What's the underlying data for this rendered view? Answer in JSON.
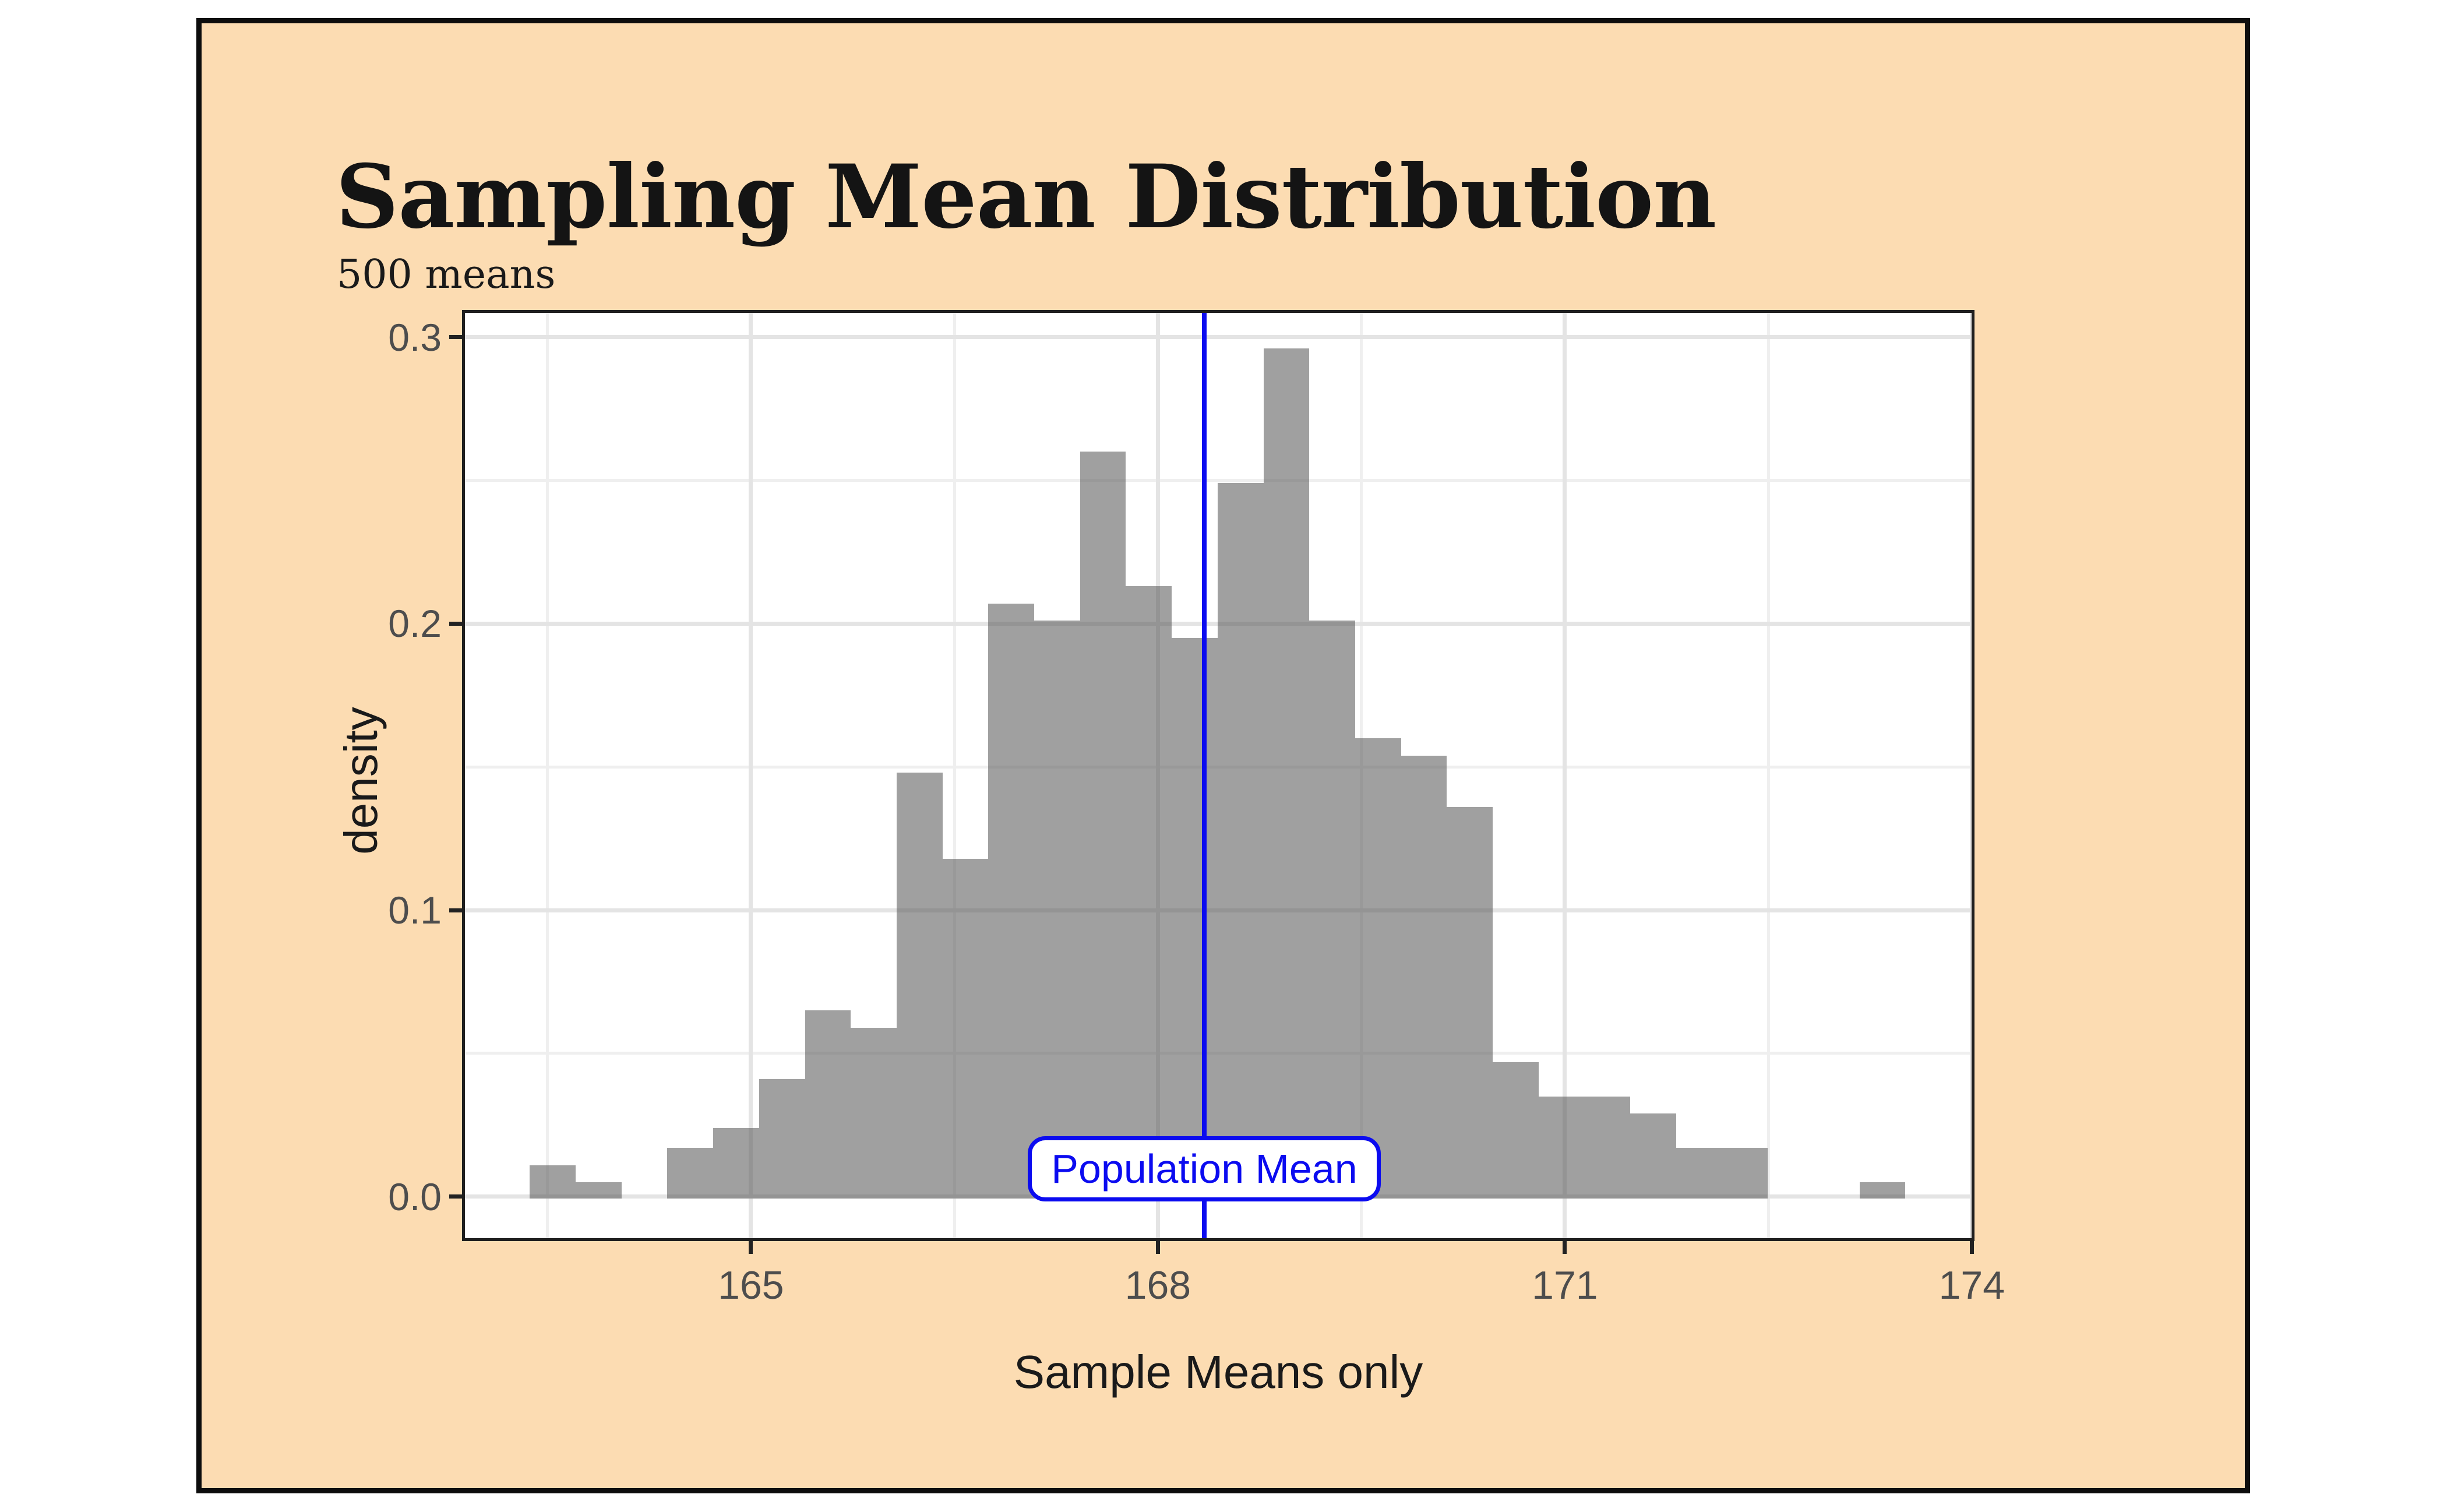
{
  "figure": {
    "background": "#fcdcb2",
    "border_color": "#0d0d0d",
    "title": "Sampling Mean Distribution",
    "subtitle": "500 means"
  },
  "chart_data": {
    "type": "bar",
    "subtype": "histogram-density",
    "title": "Sampling Mean Distribution",
    "subtitle": "500 means",
    "xlabel": "Sample Means only",
    "ylabel": "density",
    "n_label": "500 means",
    "bins": 30,
    "bin_start": 163.37,
    "bin_width": 0.338,
    "densities": [
      0.011,
      0.005,
      0,
      0.017,
      0.024,
      0.041,
      0.065,
      0.059,
      0.148,
      0.118,
      0.207,
      0.201,
      0.26,
      0.213,
      0.195,
      0.249,
      0.296,
      0.201,
      0.16,
      0.154,
      0.136,
      0.047,
      0.035,
      0.035,
      0.029,
      0.017,
      0.017,
      0,
      0,
      0.005
    ],
    "x_ticks": [
      165,
      168,
      171,
      174
    ],
    "x_tick_labels": [
      "165",
      "168",
      "171",
      "174"
    ],
    "y_ticks": [
      0,
      0.1,
      0.2,
      0.3
    ],
    "y_tick_labels": [
      "0.0",
      "0.1",
      "0.2",
      "0.3"
    ],
    "x_minor_ticks": [
      163.5,
      166.5,
      169.5,
      172.5
    ],
    "y_minor_ticks": [
      0.05,
      0.15,
      0.25
    ],
    "xlim": [
      162.87,
      174.02
    ],
    "ylim": [
      -0.0155,
      0.3095
    ],
    "grid": "major+minor",
    "legend": "none",
    "panel_background": "#ffffff",
    "gridline_major_color": "#e4e4e4",
    "gridline_minor_color": "#efefef",
    "bar_color": "rgba(85,85,85,0.56)",
    "vline": {
      "x": 168.34,
      "color": "#0b0bf0",
      "label": "Population Mean"
    }
  },
  "annotation_box": {
    "label": "Population Mean",
    "text_color": "#0b0bf0",
    "fill": "#ffffff",
    "border_color": "#0b0bf0"
  },
  "axes": {
    "tick_color": "#222222",
    "tick_label_color": "#4d4d4d",
    "axis_title_color": "#1a1a1a"
  }
}
